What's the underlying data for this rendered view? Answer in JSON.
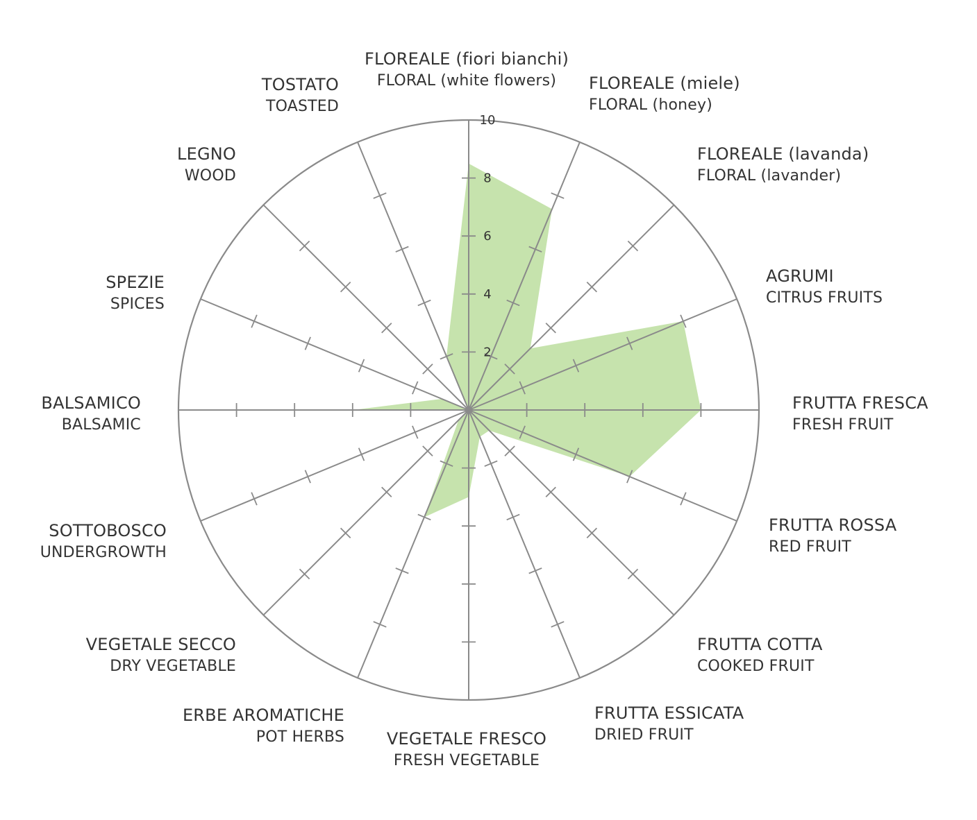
{
  "chart_data": {
    "type": "radar",
    "title": "",
    "scale": {
      "min": 0,
      "max": 10,
      "ticks": [
        "2",
        "4",
        "6",
        "8",
        "10"
      ]
    },
    "colors": {
      "fill": "#c6e3ad",
      "grid": "#8a8a8a",
      "text": "#333333"
    },
    "axes": [
      {
        "it": "FLOREALE (fiori bianchi)",
        "en": "FLORAL (white flowers)"
      },
      {
        "it": "FLOREALE (miele)",
        "en": "FLORAL (honey)"
      },
      {
        "it": "FLOREALE (lavanda)",
        "en": "FLORAL (lavander)"
      },
      {
        "it": "AGRUMI",
        "en": "CITRUS FRUITS"
      },
      {
        "it": "FRUTTA FRESCA",
        "en": "FRESH FRUIT"
      },
      {
        "it": "FRUTTA ROSSA",
        "en": "RED FRUIT"
      },
      {
        "it": "FRUTTA COTTA",
        "en": "COOKED FRUIT"
      },
      {
        "it": "FRUTTA ESSICATA",
        "en": "DRIED FRUIT"
      },
      {
        "it": "VEGETALE FRESCO",
        "en": "FRESH VEGETABLE"
      },
      {
        "it": "ERBE AROMATICHE",
        "en": "POT HERBS"
      },
      {
        "it": "VEGETALE SECCO",
        "en": "DRY VEGETABLE"
      },
      {
        "it": "SOTTOBOSCO",
        "en": "UNDERGROWTH"
      },
      {
        "it": "BALSAMICO",
        "en": "BALSAMIC"
      },
      {
        "it": "SPEZIE",
        "en": "SPICES"
      },
      {
        "it": "LEGNO",
        "en": "WOOD"
      },
      {
        "it": "TOSTATO",
        "en": "TOASTED"
      }
    ],
    "values": [
      8.5,
      7.5,
      3.0,
      8.0,
      8.0,
      6.0,
      1.0,
      1.0,
      3.0,
      4.0,
      0.5,
      0,
      4.0,
      1.0,
      0,
      2.0
    ]
  }
}
